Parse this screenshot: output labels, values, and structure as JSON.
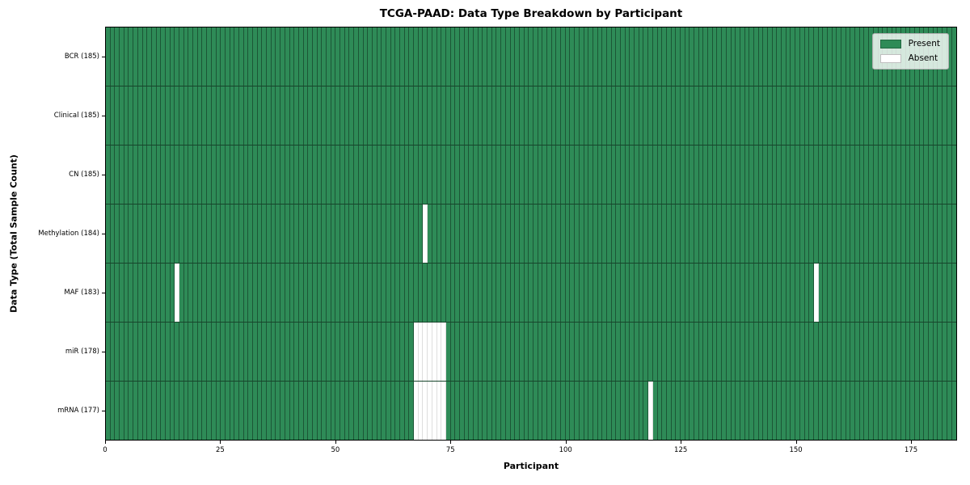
{
  "chart_data": {
    "type": "heatmap",
    "title": "TCGA-PAAD: Data Type Breakdown by Participant",
    "xlabel": "Participant",
    "ylabel": "Data Type (Total Sample Count)",
    "n_participants": 185,
    "xlim": [
      0,
      185
    ],
    "x_ticks": [
      0,
      25,
      50,
      75,
      100,
      125,
      150,
      175
    ],
    "grid": "per-cell edge lines, dark over green and light gray over white",
    "colors": {
      "present": "#2E8B57",
      "absent": "#FFFFFF",
      "cell_edge": "rgba(0,0,0,0.38)",
      "row_divider": "rgba(0,0,0,0.5)",
      "axis": "#000000"
    },
    "legend": {
      "position": "upper-right",
      "entries": [
        {
          "label": "Present",
          "color": "#2E8B57"
        },
        {
          "label": "Absent",
          "color": "#FFFFFF"
        }
      ]
    },
    "rows": [
      {
        "data_type": "BCR",
        "label": "BCR (185)",
        "present_count": 185,
        "absent_participants": []
      },
      {
        "data_type": "Clinical",
        "label": "Clinical (185)",
        "present_count": 185,
        "absent_participants": []
      },
      {
        "data_type": "CN",
        "label": "CN (185)",
        "present_count": 185,
        "absent_participants": []
      },
      {
        "data_type": "Methylation",
        "label": "Methylation (184)",
        "present_count": 184,
        "absent_participants": [
          69
        ]
      },
      {
        "data_type": "MAF",
        "label": "MAF (183)",
        "present_count": 183,
        "absent_participants": [
          15,
          154
        ]
      },
      {
        "data_type": "miR",
        "label": "miR (178)",
        "present_count": 178,
        "absent_participants": [
          67,
          68,
          69,
          70,
          71,
          72,
          73
        ]
      },
      {
        "data_type": "mRNA",
        "label": "mRNA (177)",
        "present_count": 177,
        "absent_participants": [
          67,
          68,
          69,
          70,
          71,
          72,
          73,
          118
        ]
      }
    ]
  }
}
